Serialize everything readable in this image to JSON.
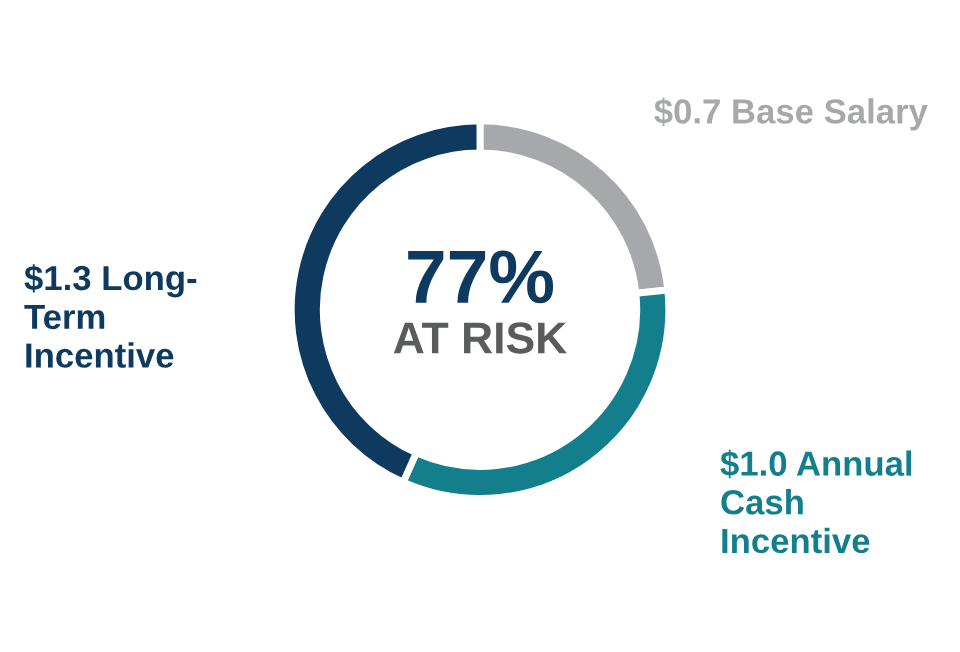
{
  "chart_data": {
    "type": "donut",
    "categories": [
      "$0.7 Base Salary",
      "$1.0 Annual\nCash\nIncentive",
      "$1.3 Long-\nTerm\nIncentive"
    ],
    "values": [
      0.7,
      1.0,
      1.3
    ],
    "colors": [
      "#a6a8ab",
      "#137e8c",
      "#0e3a5f"
    ],
    "annotations": [
      "77%",
      "AT RISK"
    ],
    "legend": false
  }
}
